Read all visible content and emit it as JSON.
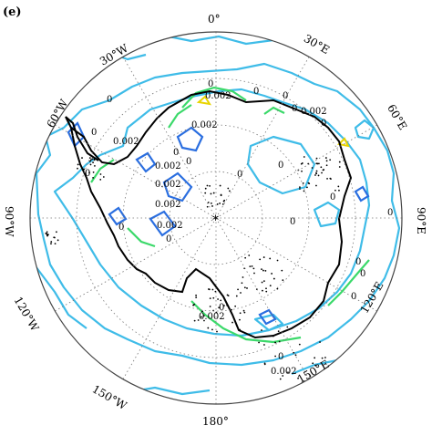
{
  "panel_label": "(e)",
  "longitude_labels": [
    {
      "id": "lon-0",
      "text": "0°"
    },
    {
      "id": "lon-30e",
      "text": "30°E"
    },
    {
      "id": "lon-60e",
      "text": "60°E"
    },
    {
      "id": "lon-90e",
      "text": "90°E"
    },
    {
      "id": "lon-120e",
      "text": "120°E"
    },
    {
      "id": "lon-150e",
      "text": "150°E"
    },
    {
      "id": "lon-180",
      "text": "180°"
    },
    {
      "id": "lon-150w",
      "text": "150°W"
    },
    {
      "id": "lon-120w",
      "text": "120°W"
    },
    {
      "id": "lon-90w",
      "text": "90°W"
    },
    {
      "id": "lon-60w",
      "text": "60°W"
    },
    {
      "id": "lon-30w",
      "text": "30°W"
    }
  ],
  "contour_labels": [
    {
      "id": "c1",
      "text": "0"
    },
    {
      "id": "c2",
      "text": "0"
    },
    {
      "id": "c3",
      "text": "0"
    },
    {
      "id": "c4",
      "text": "0"
    },
    {
      "id": "c5",
      "text": "0.002"
    },
    {
      "id": "c6",
      "text": "0.002"
    },
    {
      "id": "c7",
      "text": "0"
    },
    {
      "id": "c8",
      "text": "0.002"
    },
    {
      "id": "c9",
      "text": "0"
    },
    {
      "id": "c10",
      "text": "0"
    },
    {
      "id": "c11",
      "text": "0.002"
    },
    {
      "id": "c12",
      "text": "0"
    },
    {
      "id": "c13",
      "text": "0.002"
    },
    {
      "id": "c14",
      "text": "0"
    },
    {
      "id": "c15",
      "text": "0"
    },
    {
      "id": "c16",
      "text": "0.002"
    },
    {
      "id": "c17",
      "text": "0"
    },
    {
      "id": "c18",
      "text": "0"
    },
    {
      "id": "c19",
      "text": "0"
    },
    {
      "id": "c20",
      "text": "0.002"
    },
    {
      "id": "c21",
      "text": "0"
    },
    {
      "id": "c22",
      "text": "0"
    },
    {
      "id": "c23",
      "text": "0.002"
    },
    {
      "id": "c24",
      "text": "0"
    },
    {
      "id": "c25",
      "text": "0"
    },
    {
      "id": "c26",
      "text": "0"
    },
    {
      "id": "c27",
      "text": "0"
    },
    {
      "id": "c28",
      "text": "0.002"
    },
    {
      "id": "c29",
      "text": "0"
    },
    {
      "id": "c30",
      "text": "0.002"
    },
    {
      "id": "c31",
      "text": "0"
    },
    {
      "id": "c32",
      "text": "0"
    }
  ],
  "colors": {
    "contour_cyan": "#3fbce8",
    "contour_green": "#3bd96a",
    "contour_blue": "#2a6ee0",
    "contour_yellow": "#e8d400",
    "coastline": "#000000",
    "graticule": "#777777",
    "frame": "#444444"
  },
  "map": {
    "projection": "south polar stereographic",
    "graticule": "dotted",
    "center_marker": "*"
  }
}
